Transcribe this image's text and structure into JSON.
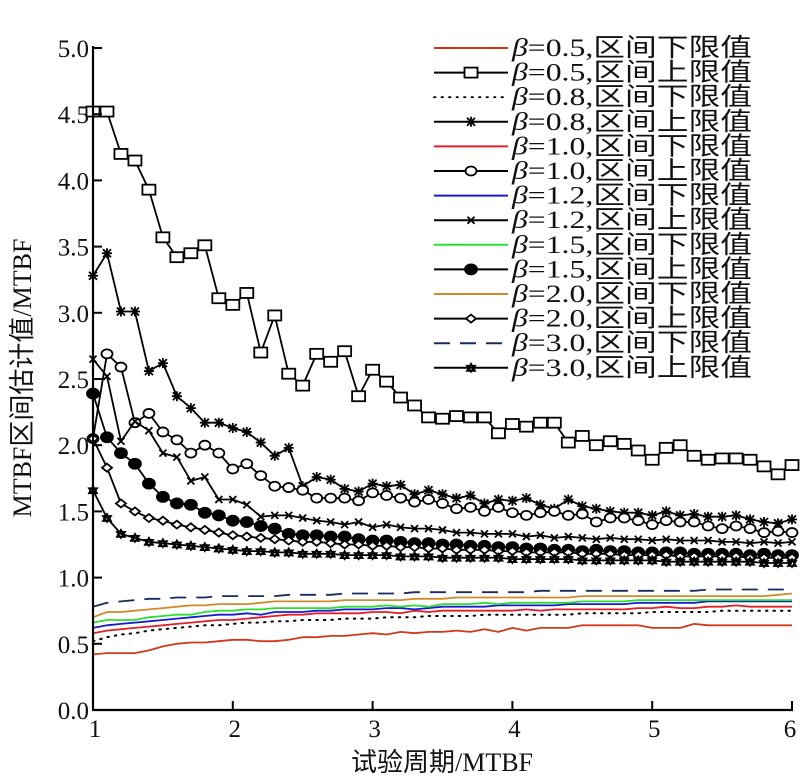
{
  "chart_data": {
    "type": "line",
    "title": "",
    "xlabel": "试验周期/MTBF",
    "ylabel": "MTBF区间估计值/MTBF",
    "xlim": [
      1,
      6
    ],
    "ylim": [
      0,
      5
    ],
    "xticks": [
      "1",
      "2",
      "3",
      "4",
      "5",
      "6"
    ],
    "yticks": [
      "0.0",
      "0.5",
      "1.0",
      "1.5",
      "2.0",
      "2.5",
      "3.0",
      "3.5",
      "4.0",
      "4.5",
      "5.0"
    ],
    "grid": false,
    "legend_position": "top-right",
    "x": [
      1.0,
      1.1,
      1.2,
      1.3,
      1.4,
      1.5,
      1.6,
      1.7,
      1.8,
      1.9,
      2.0,
      2.1,
      2.2,
      2.3,
      2.4,
      2.5,
      2.6,
      2.7,
      2.8,
      2.9,
      3.0,
      3.1,
      3.2,
      3.3,
      3.4,
      3.5,
      3.6,
      3.7,
      3.8,
      3.9,
      4.0,
      4.1,
      4.2,
      4.3,
      4.4,
      4.5,
      4.6,
      4.7,
      4.8,
      4.9,
      5.0,
      5.1,
      5.2,
      5.3,
      5.4,
      5.5,
      5.6,
      5.7,
      5.8,
      5.9,
      6.0
    ],
    "series": [
      {
        "name": "β=0.5,区间下限值",
        "color": "#d03a1a",
        "style": "solid",
        "marker": "none",
        "values": [
          0.42,
          0.43,
          0.43,
          0.43,
          0.45,
          0.48,
          0.5,
          0.51,
          0.51,
          0.52,
          0.53,
          0.53,
          0.52,
          0.52,
          0.53,
          0.55,
          0.55,
          0.56,
          0.56,
          0.57,
          0.58,
          0.57,
          0.59,
          0.58,
          0.59,
          0.59,
          0.6,
          0.59,
          0.61,
          0.59,
          0.62,
          0.6,
          0.62,
          0.62,
          0.62,
          0.64,
          0.64,
          0.64,
          0.64,
          0.64,
          0.62,
          0.62,
          0.62,
          0.65,
          0.64,
          0.64,
          0.64,
          0.64,
          0.64,
          0.64,
          0.64
        ]
      },
      {
        "name": "β=0.5,区间上限值",
        "color": "#000000",
        "style": "solid",
        "marker": "square",
        "values": [
          4.52,
          4.52,
          4.2,
          4.15,
          3.93,
          3.57,
          3.42,
          3.45,
          3.51,
          3.11,
          3.06,
          3.15,
          2.7,
          2.98,
          2.54,
          2.45,
          2.69,
          2.63,
          2.71,
          2.37,
          2.57,
          2.48,
          2.36,
          2.3,
          2.21,
          2.2,
          2.22,
          2.21,
          2.21,
          2.09,
          2.16,
          2.14,
          2.17,
          2.17,
          2.02,
          2.07,
          2.0,
          2.03,
          2.01,
          1.96,
          1.89,
          1.98,
          2.0,
          1.92,
          1.89,
          1.9,
          1.9,
          1.89,
          1.84,
          1.78,
          1.85
        ]
      },
      {
        "name": "β=0.8,区间下限值",
        "color": "#000000",
        "style": "dotted",
        "marker": "none",
        "values": [
          0.52,
          0.55,
          0.57,
          0.58,
          0.6,
          0.61,
          0.62,
          0.63,
          0.64,
          0.64,
          0.65,
          0.66,
          0.66,
          0.67,
          0.67,
          0.68,
          0.68,
          0.68,
          0.69,
          0.69,
          0.69,
          0.7,
          0.7,
          0.7,
          0.71,
          0.71,
          0.71,
          0.71,
          0.72,
          0.72,
          0.72,
          0.72,
          0.72,
          0.72,
          0.72,
          0.73,
          0.73,
          0.73,
          0.73,
          0.73,
          0.74,
          0.74,
          0.74,
          0.74,
          0.74,
          0.75,
          0.75,
          0.75,
          0.75,
          0.75,
          0.75
        ]
      },
      {
        "name": "β=0.8,区间上限值",
        "color": "#000000",
        "style": "solid",
        "marker": "asterisk",
        "values": [
          3.28,
          3.45,
          3.01,
          3.01,
          2.56,
          2.62,
          2.37,
          2.28,
          2.17,
          2.17,
          2.13,
          2.1,
          2.02,
          1.92,
          1.98,
          1.69,
          1.76,
          1.74,
          1.67,
          1.65,
          1.71,
          1.69,
          1.7,
          1.63,
          1.66,
          1.63,
          1.6,
          1.62,
          1.56,
          1.59,
          1.58,
          1.6,
          1.55,
          1.52,
          1.59,
          1.54,
          1.52,
          1.5,
          1.49,
          1.49,
          1.47,
          1.5,
          1.47,
          1.48,
          1.46,
          1.46,
          1.47,
          1.44,
          1.42,
          1.41,
          1.44
        ]
      },
      {
        "name": "β=1.0,区间下限值",
        "color": "#e0202a",
        "style": "solid",
        "marker": "none",
        "values": [
          0.58,
          0.6,
          0.61,
          0.62,
          0.63,
          0.64,
          0.65,
          0.66,
          0.67,
          0.68,
          0.68,
          0.69,
          0.7,
          0.71,
          0.72,
          0.72,
          0.73,
          0.73,
          0.73,
          0.73,
          0.74,
          0.74,
          0.73,
          0.75,
          0.74,
          0.75,
          0.75,
          0.75,
          0.75,
          0.75,
          0.75,
          0.76,
          0.75,
          0.76,
          0.76,
          0.76,
          0.76,
          0.76,
          0.76,
          0.77,
          0.77,
          0.78,
          0.77,
          0.77,
          0.78,
          0.78,
          0.79,
          0.78,
          0.78,
          0.78,
          0.78
        ]
      },
      {
        "name": "β=1.0,区间上限值",
        "color": "#000000",
        "style": "solid",
        "marker": "circle",
        "values": [
          2.05,
          2.69,
          2.59,
          2.17,
          2.24,
          2.1,
          2.04,
          1.94,
          2.0,
          1.94,
          1.82,
          1.86,
          1.77,
          1.69,
          1.68,
          1.66,
          1.6,
          1.6,
          1.6,
          1.58,
          1.64,
          1.62,
          1.6,
          1.57,
          1.59,
          1.56,
          1.52,
          1.53,
          1.5,
          1.53,
          1.49,
          1.47,
          1.49,
          1.5,
          1.47,
          1.48,
          1.42,
          1.45,
          1.45,
          1.43,
          1.4,
          1.43,
          1.42,
          1.42,
          1.39,
          1.37,
          1.39,
          1.37,
          1.34,
          1.35,
          1.34
        ]
      },
      {
        "name": "β=1.2,区间下限值",
        "color": "#1a1ad0",
        "style": "solid",
        "marker": "none",
        "values": [
          0.62,
          0.64,
          0.65,
          0.66,
          0.67,
          0.68,
          0.69,
          0.7,
          0.71,
          0.72,
          0.72,
          0.73,
          0.72,
          0.74,
          0.74,
          0.74,
          0.75,
          0.75,
          0.76,
          0.76,
          0.76,
          0.77,
          0.77,
          0.76,
          0.77,
          0.78,
          0.78,
          0.78,
          0.78,
          0.79,
          0.79,
          0.79,
          0.79,
          0.79,
          0.8,
          0.8,
          0.8,
          0.8,
          0.8,
          0.81,
          0.81,
          0.81,
          0.81,
          0.81,
          0.82,
          0.82,
          0.82,
          0.82,
          0.82,
          0.82,
          0.82
        ]
      },
      {
        "name": "β=1.2,区间上限值",
        "color": "#000000",
        "style": "solid",
        "marker": "x",
        "values": [
          2.65,
          2.52,
          2.03,
          2.18,
          2.11,
          1.94,
          1.91,
          1.73,
          1.76,
          1.59,
          1.59,
          1.55,
          1.46,
          1.47,
          1.47,
          1.45,
          1.43,
          1.42,
          1.4,
          1.42,
          1.38,
          1.4,
          1.38,
          1.37,
          1.37,
          1.36,
          1.34,
          1.34,
          1.33,
          1.33,
          1.33,
          1.31,
          1.32,
          1.3,
          1.31,
          1.3,
          1.29,
          1.3,
          1.29,
          1.29,
          1.28,
          1.29,
          1.28,
          1.28,
          1.28,
          1.27,
          1.27,
          1.26,
          1.27,
          1.26,
          1.27
        ]
      },
      {
        "name": "β=1.5,区间下限值",
        "color": "#2ee02e",
        "style": "solid",
        "marker": "none",
        "values": [
          0.66,
          0.68,
          0.68,
          0.68,
          0.7,
          0.71,
          0.72,
          0.72,
          0.74,
          0.75,
          0.75,
          0.76,
          0.76,
          0.77,
          0.77,
          0.77,
          0.77,
          0.77,
          0.78,
          0.78,
          0.78,
          0.79,
          0.78,
          0.79,
          0.78,
          0.8,
          0.8,
          0.8,
          0.81,
          0.8,
          0.81,
          0.81,
          0.81,
          0.81,
          0.81,
          0.82,
          0.82,
          0.82,
          0.82,
          0.83,
          0.83,
          0.83,
          0.83,
          0.83,
          0.83,
          0.83,
          0.83,
          0.83,
          0.83,
          0.83,
          0.83
        ]
      },
      {
        "name": "β=1.5,区间上限值",
        "color": "#000000",
        "style": "solid",
        "marker": "filled-circle",
        "values": [
          2.39,
          2.06,
          1.94,
          1.86,
          1.71,
          1.61,
          1.56,
          1.55,
          1.49,
          1.47,
          1.43,
          1.42,
          1.39,
          1.37,
          1.33,
          1.32,
          1.32,
          1.31,
          1.31,
          1.29,
          1.28,
          1.28,
          1.27,
          1.26,
          1.26,
          1.25,
          1.25,
          1.24,
          1.24,
          1.23,
          1.23,
          1.22,
          1.22,
          1.21,
          1.21,
          1.2,
          1.21,
          1.2,
          1.2,
          1.19,
          1.19,
          1.19,
          1.19,
          1.18,
          1.18,
          1.18,
          1.18,
          1.17,
          1.18,
          1.17,
          1.17
        ]
      },
      {
        "name": "β=2.0,区间下限值",
        "color": "#d08a2a",
        "style": "solid",
        "marker": "none",
        "values": [
          0.7,
          0.74,
          0.74,
          0.75,
          0.76,
          0.77,
          0.78,
          0.79,
          0.79,
          0.8,
          0.8,
          0.8,
          0.81,
          0.82,
          0.82,
          0.82,
          0.82,
          0.82,
          0.83,
          0.83,
          0.83,
          0.83,
          0.83,
          0.84,
          0.84,
          0.84,
          0.85,
          0.85,
          0.85,
          0.85,
          0.85,
          0.85,
          0.85,
          0.85,
          0.85,
          0.86,
          0.86,
          0.86,
          0.86,
          0.86,
          0.86,
          0.86,
          0.86,
          0.86,
          0.86,
          0.86,
          0.86,
          0.86,
          0.86,
          0.87,
          0.88
        ]
      },
      {
        "name": "β=2.0,区间上限值",
        "color": "#000000",
        "style": "solid",
        "marker": "diamond",
        "values": [
          2.05,
          1.83,
          1.56,
          1.5,
          1.45,
          1.43,
          1.4,
          1.38,
          1.36,
          1.34,
          1.32,
          1.31,
          1.3,
          1.29,
          1.28,
          1.27,
          1.27,
          1.26,
          1.25,
          1.25,
          1.24,
          1.24,
          1.23,
          1.23,
          1.22,
          1.22,
          1.21,
          1.21,
          1.21,
          1.2,
          1.2,
          1.19,
          1.19,
          1.19,
          1.19,
          1.18,
          1.18,
          1.18,
          1.17,
          1.17,
          1.17,
          1.17,
          1.16,
          1.16,
          1.16,
          1.16,
          1.16,
          1.15,
          1.15,
          1.15,
          1.15
        ]
      },
      {
        "name": "β=3.0,区间下限值",
        "color": "#1a2a5a",
        "style": "dashed",
        "marker": "none",
        "values": [
          0.78,
          0.81,
          0.82,
          0.83,
          0.84,
          0.84,
          0.85,
          0.85,
          0.85,
          0.86,
          0.86,
          0.86,
          0.86,
          0.86,
          0.87,
          0.87,
          0.87,
          0.87,
          0.88,
          0.88,
          0.88,
          0.88,
          0.88,
          0.89,
          0.89,
          0.89,
          0.89,
          0.89,
          0.89,
          0.89,
          0.89,
          0.89,
          0.9,
          0.9,
          0.9,
          0.9,
          0.9,
          0.9,
          0.9,
          0.9,
          0.9,
          0.9,
          0.9,
          0.9,
          0.91,
          0.91,
          0.91,
          0.91,
          0.91,
          0.91,
          0.91
        ]
      },
      {
        "name": "β=3.0,区间上限值",
        "color": "#000000",
        "style": "solid",
        "marker": "star",
        "values": [
          1.66,
          1.45,
          1.33,
          1.3,
          1.27,
          1.26,
          1.25,
          1.24,
          1.23,
          1.22,
          1.21,
          1.2,
          1.2,
          1.19,
          1.19,
          1.18,
          1.18,
          1.18,
          1.17,
          1.17,
          1.17,
          1.17,
          1.16,
          1.16,
          1.16,
          1.15,
          1.15,
          1.15,
          1.15,
          1.15,
          1.14,
          1.14,
          1.14,
          1.14,
          1.14,
          1.13,
          1.13,
          1.13,
          1.13,
          1.13,
          1.13,
          1.12,
          1.12,
          1.12,
          1.12,
          1.12,
          1.12,
          1.12,
          1.11,
          1.11,
          1.11
        ]
      }
    ]
  }
}
